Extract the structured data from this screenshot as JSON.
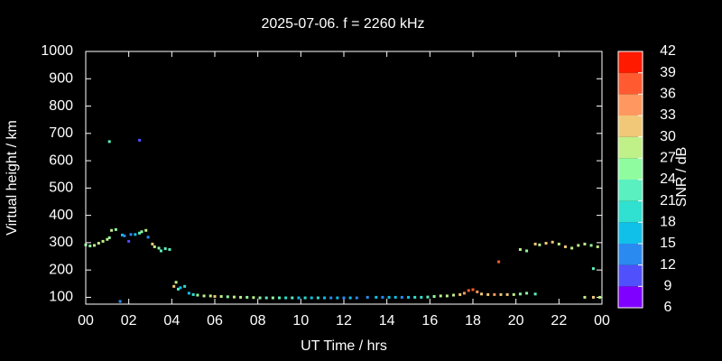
{
  "chart_data": {
    "type": "scatter",
    "title": "2025-07-06. f = 2260 kHz",
    "x_label": "UT Time / hrs",
    "y_label": "Virtual height / km",
    "xlim": [
      0,
      24
    ],
    "xticks": [
      {
        "value": 0,
        "label": "00"
      },
      {
        "value": 2,
        "label": "02"
      },
      {
        "value": 4,
        "label": "04"
      },
      {
        "value": 6,
        "label": "06"
      },
      {
        "value": 8,
        "label": "08"
      },
      10,
      12,
      14,
      16,
      18,
      20,
      22,
      {
        "value": 24,
        "label": "00"
      }
    ],
    "ylim": [
      75,
      1000
    ],
    "yticks": [
      100,
      200,
      300,
      400,
      500,
      600,
      700,
      800,
      900,
      1000
    ],
    "colorbar": {
      "label": "SNR / dB",
      "ticks": [
        6,
        9,
        12,
        15,
        18,
        21,
        24,
        27,
        30,
        33,
        36,
        39,
        42
      ],
      "colors": [
        "#8000ff",
        "#5050fc",
        "#2a8af0",
        "#10c0e8",
        "#30e0d0",
        "#5af0c0",
        "#90fca0",
        "#c0f088",
        "#f0c878",
        "#ff9860",
        "#ff5a30",
        "#ff1a00"
      ]
    },
    "x": [
      0.0,
      0.2,
      0.4,
      0.6,
      0.8,
      1.0,
      1.1,
      1.2,
      1.4,
      1.1,
      1.6,
      1.7,
      1.8,
      2.0,
      2.1,
      2.3,
      2.5,
      2.5,
      2.6,
      2.8,
      2.9,
      3.1,
      3.2,
      3.4,
      3.5,
      3.7,
      3.9,
      4.1,
      4.2,
      4.3,
      4.4,
      4.6,
      4.8,
      5.0,
      5.2,
      5.5,
      5.8,
      6.0,
      6.3,
      6.6,
      6.9,
      7.2,
      7.5,
      7.8,
      8.1,
      8.4,
      8.7,
      9.0,
      9.3,
      9.6,
      9.9,
      10.2,
      10.5,
      10.8,
      11.1,
      11.4,
      11.7,
      12.0,
      12.3,
      12.6,
      13.1,
      13.5,
      13.8,
      14.1,
      14.4,
      14.7,
      15.0,
      15.3,
      15.6,
      15.9,
      16.2,
      16.5,
      16.8,
      17.1,
      17.4,
      17.6,
      17.8,
      18.0,
      18.2,
      18.4,
      18.7,
      19.0,
      19.2,
      19.3,
      19.6,
      19.9,
      20.2,
      20.5,
      20.9,
      20.2,
      20.5,
      20.9,
      21.1,
      21.4,
      21.7,
      22.0,
      22.3,
      22.6,
      22.9,
      23.2,
      23.5,
      23.6,
      23.2,
      23.6,
      23.9,
      23.8
    ],
    "y": [
      292,
      288,
      290,
      298,
      305,
      312,
      318,
      345,
      348,
      670,
      85,
      328,
      325,
      305,
      330,
      330,
      335,
      675,
      340,
      345,
      320,
      295,
      285,
      280,
      270,
      278,
      275,
      140,
      155,
      130,
      135,
      140,
      115,
      110,
      108,
      105,
      105,
      103,
      103,
      102,
      101,
      100,
      100,
      99,
      98,
      98,
      98,
      98,
      98,
      98,
      98,
      98,
      98,
      98,
      98,
      98,
      98,
      98,
      98,
      98,
      100,
      100,
      100,
      100,
      100,
      100,
      100,
      100,
      100,
      101,
      103,
      105,
      105,
      108,
      110,
      115,
      125,
      128,
      120,
      112,
      110,
      110,
      230,
      110,
      110,
      110,
      112,
      115,
      112,
      275,
      270,
      295,
      292,
      298,
      302,
      295,
      285,
      280,
      290,
      295,
      290,
      205,
      100,
      100,
      100,
      285
    ],
    "snr": [
      24,
      24,
      27,
      27,
      27,
      27,
      24,
      27,
      24,
      21,
      12,
      15,
      12,
      9,
      12,
      15,
      21,
      9,
      24,
      27,
      12,
      30,
      27,
      24,
      21,
      21,
      21,
      30,
      27,
      21,
      15,
      18,
      15,
      18,
      24,
      27,
      27,
      30,
      27,
      24,
      27,
      27,
      24,
      27,
      24,
      21,
      24,
      21,
      18,
      21,
      15,
      18,
      15,
      18,
      15,
      12,
      15,
      12,
      15,
      12,
      12,
      15,
      12,
      15,
      15,
      12,
      15,
      18,
      18,
      21,
      24,
      27,
      27,
      27,
      30,
      33,
      36,
      36,
      33,
      30,
      30,
      33,
      36,
      30,
      30,
      27,
      24,
      24,
      21,
      27,
      24,
      30,
      27,
      30,
      30,
      27,
      30,
      27,
      27,
      27,
      24,
      21,
      27,
      30,
      27,
      27
    ]
  }
}
